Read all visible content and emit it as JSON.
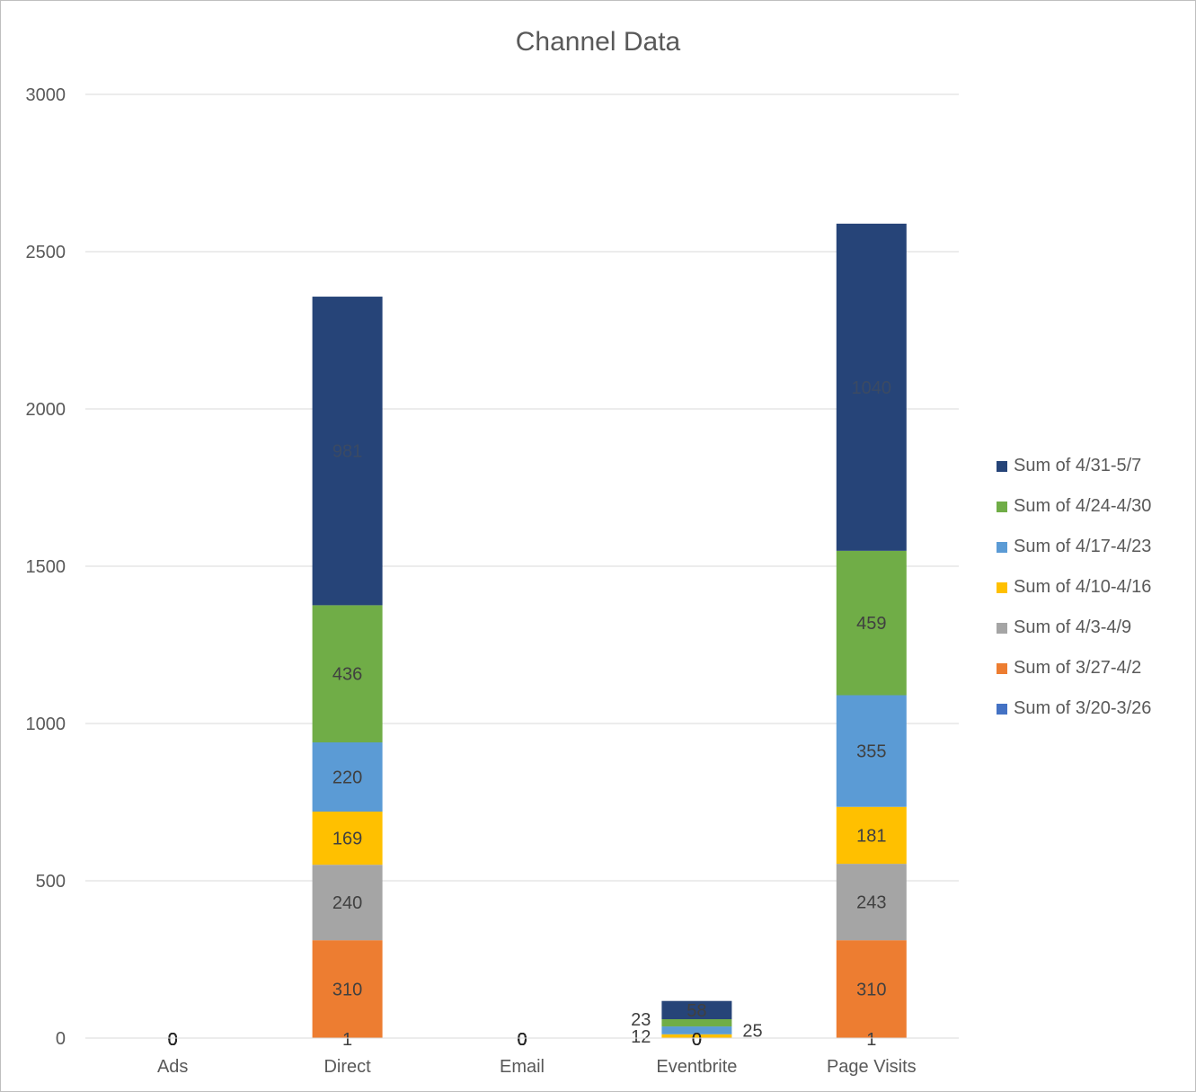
{
  "chart_data": {
    "type": "bar",
    "stacked": true,
    "title": "Channel Data",
    "xlabel": "",
    "ylabel": "",
    "ylim": [
      0,
      3000
    ],
    "yticks": [
      0,
      500,
      1000,
      1500,
      2000,
      2500,
      3000
    ],
    "grid": true,
    "legend_position": "right",
    "categories": [
      "Ads",
      "Direct",
      "Email",
      "Eventbrite",
      "Page Visits"
    ],
    "series": [
      {
        "name": "Sum of 3/20-3/26",
        "color": "#4472c4",
        "values": [
          0,
          1,
          0,
          0,
          1
        ],
        "labels": [
          "0",
          "1",
          "0",
          "0",
          "1"
        ]
      },
      {
        "name": "Sum of 3/27-4/2",
        "color": "#ed7d31",
        "values": [
          0,
          310,
          0,
          0,
          310
        ],
        "labels": [
          "0",
          "310",
          "0",
          "0",
          "310"
        ]
      },
      {
        "name": "Sum of 4/3-4/9",
        "color": "#a5a5a5",
        "values": [
          0,
          240,
          0,
          0,
          243
        ],
        "labels": [
          "0",
          "240",
          "0",
          "0",
          "243"
        ]
      },
      {
        "name": "Sum of 4/10-4/16",
        "color": "#ffc000",
        "values": [
          0,
          169,
          0,
          12,
          181
        ],
        "labels": [
          "0",
          "169",
          "0",
          "12",
          "181"
        ]
      },
      {
        "name": "Sum of 4/17-4/23",
        "color": "#5b9bd5",
        "values": [
          0,
          220,
          0,
          25,
          355
        ],
        "labels": [
          "0",
          "220",
          "0",
          "25",
          "355"
        ]
      },
      {
        "name": "Sum of 4/24-4/30",
        "color": "#70ad47",
        "values": [
          0,
          436,
          0,
          23,
          459
        ],
        "labels": [
          "0",
          "436",
          "0",
          "23",
          "459"
        ]
      },
      {
        "name": "Sum of 4/31-5/7",
        "color": "#264478",
        "values": [
          0,
          981,
          0,
          58,
          1040
        ],
        "labels": [
          "0",
          "981",
          "0",
          "58",
          "1040"
        ]
      }
    ]
  }
}
